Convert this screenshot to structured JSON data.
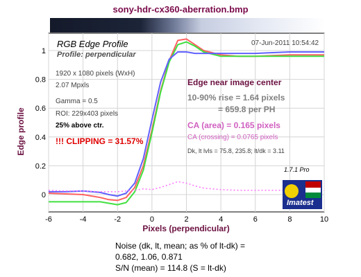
{
  "file_title": "sony-hdr-cx360-aberration.bmp",
  "timestamp": "07-Jun-2011 10:54:42",
  "version": "1.7.1  Pro",
  "logo_label": "Imatest",
  "info": {
    "size": "1920 x 1080 pixels (WxH)",
    "mpxls": "2.07 Mpxls",
    "gamma": "Gamma = 0.5",
    "roi": "ROI: 229x403 pixels",
    "above": "25% above ctr.",
    "clipping": "!!! CLIPPING =  31.57%"
  },
  "results": {
    "heading": "Edge near image center",
    "rise_pixels": "10-90% rise = 1.64 pixels",
    "rise_ph": "= 659.8 per PH",
    "ca_area": "CA (area) = 0.165 pixels",
    "ca_crossing": "CA (crossing) = 0.0765 pixels",
    "levels": "Dk, lt lvls = 75.8, 235.8;  lt/dk = 3.11"
  },
  "noise": {
    "line1": "Noise (dk, lt, mean; as % of lt-dk) =",
    "line2": "0.682,  1.06,  0.871",
    "line3": "S/N (mean) = 114.8  (S = lt-dk)"
  },
  "colors": {
    "red": "#ff6060",
    "green": "#40e040",
    "blue": "#6060ff",
    "difference": "#ff70ff",
    "title": "#7a0a4a"
  },
  "chart_data": {
    "type": "line",
    "title": "RGB Edge Profile",
    "subtitle": "Profile: perpendicular",
    "xlabel": "Pixels (perpendicular)",
    "ylabel": "Edge profile",
    "xlim": [
      -6,
      10
    ],
    "ylim": [
      -0.12,
      1.12
    ],
    "x_ticks": [
      "-6",
      "-4",
      "-2",
      "0",
      "2",
      "4",
      "6",
      "8",
      "10"
    ],
    "y_ticks": [
      "0",
      "0.2",
      "0.4",
      "0.6",
      "0.8",
      "1"
    ],
    "grid": true,
    "series": [
      {
        "color": "red",
        "x": [
          -6,
          -5,
          -4,
          -3,
          -2.5,
          -2,
          -1.5,
          -1,
          -0.5,
          0,
          0.5,
          1,
          1.5,
          2,
          2.5,
          3,
          4,
          5,
          6,
          8,
          10
        ],
        "y": [
          0.01,
          0.005,
          0.0,
          -0.02,
          -0.035,
          -0.04,
          -0.02,
          0.05,
          0.2,
          0.45,
          0.72,
          0.93,
          1.07,
          1.08,
          1.04,
          1.0,
          0.97,
          0.96,
          0.96,
          0.97,
          0.97
        ]
      },
      {
        "color": "green",
        "x": [
          -6,
          -5,
          -4,
          -3,
          -2.5,
          -2,
          -1.5,
          -1,
          -0.5,
          0,
          0.5,
          1,
          1.5,
          2,
          2.5,
          3,
          4,
          5,
          6,
          8,
          10
        ],
        "y": [
          -0.05,
          -0.05,
          -0.05,
          -0.05,
          -0.06,
          -0.07,
          -0.055,
          0.02,
          0.17,
          0.43,
          0.71,
          0.92,
          1.04,
          1.06,
          1.03,
          0.99,
          0.96,
          0.96,
          0.96,
          0.96,
          0.96
        ]
      },
      {
        "color": "blue",
        "x": [
          -6,
          -5,
          -4,
          -3,
          -2.5,
          -2,
          -1.5,
          -1,
          -0.5,
          0,
          0.5,
          1,
          1.5,
          2,
          2.5,
          3,
          4,
          5,
          6,
          8,
          10
        ],
        "y": [
          0.02,
          0.02,
          0.025,
          0.015,
          0.0,
          -0.01,
          0.01,
          0.08,
          0.25,
          0.52,
          0.78,
          0.94,
          0.99,
          0.99,
          0.98,
          0.98,
          0.98,
          0.98,
          0.98,
          0.99,
          0.99
        ]
      },
      {
        "color": "difference",
        "dashed": true,
        "x": [
          -6,
          -5,
          -4,
          -3,
          -2,
          -1.5,
          -1,
          -0.5,
          0,
          0.5,
          1,
          1.5,
          2,
          2.5,
          3,
          3.5,
          4,
          5,
          6,
          8,
          10
        ],
        "y": [
          0.03,
          0.025,
          0.025,
          0.02,
          0.02,
          0.025,
          0.03,
          0.04,
          0.035,
          0.05,
          0.07,
          0.09,
          0.08,
          0.06,
          0.045,
          0.04,
          0.035,
          0.03,
          0.03,
          0.03,
          0.03
        ]
      }
    ]
  }
}
